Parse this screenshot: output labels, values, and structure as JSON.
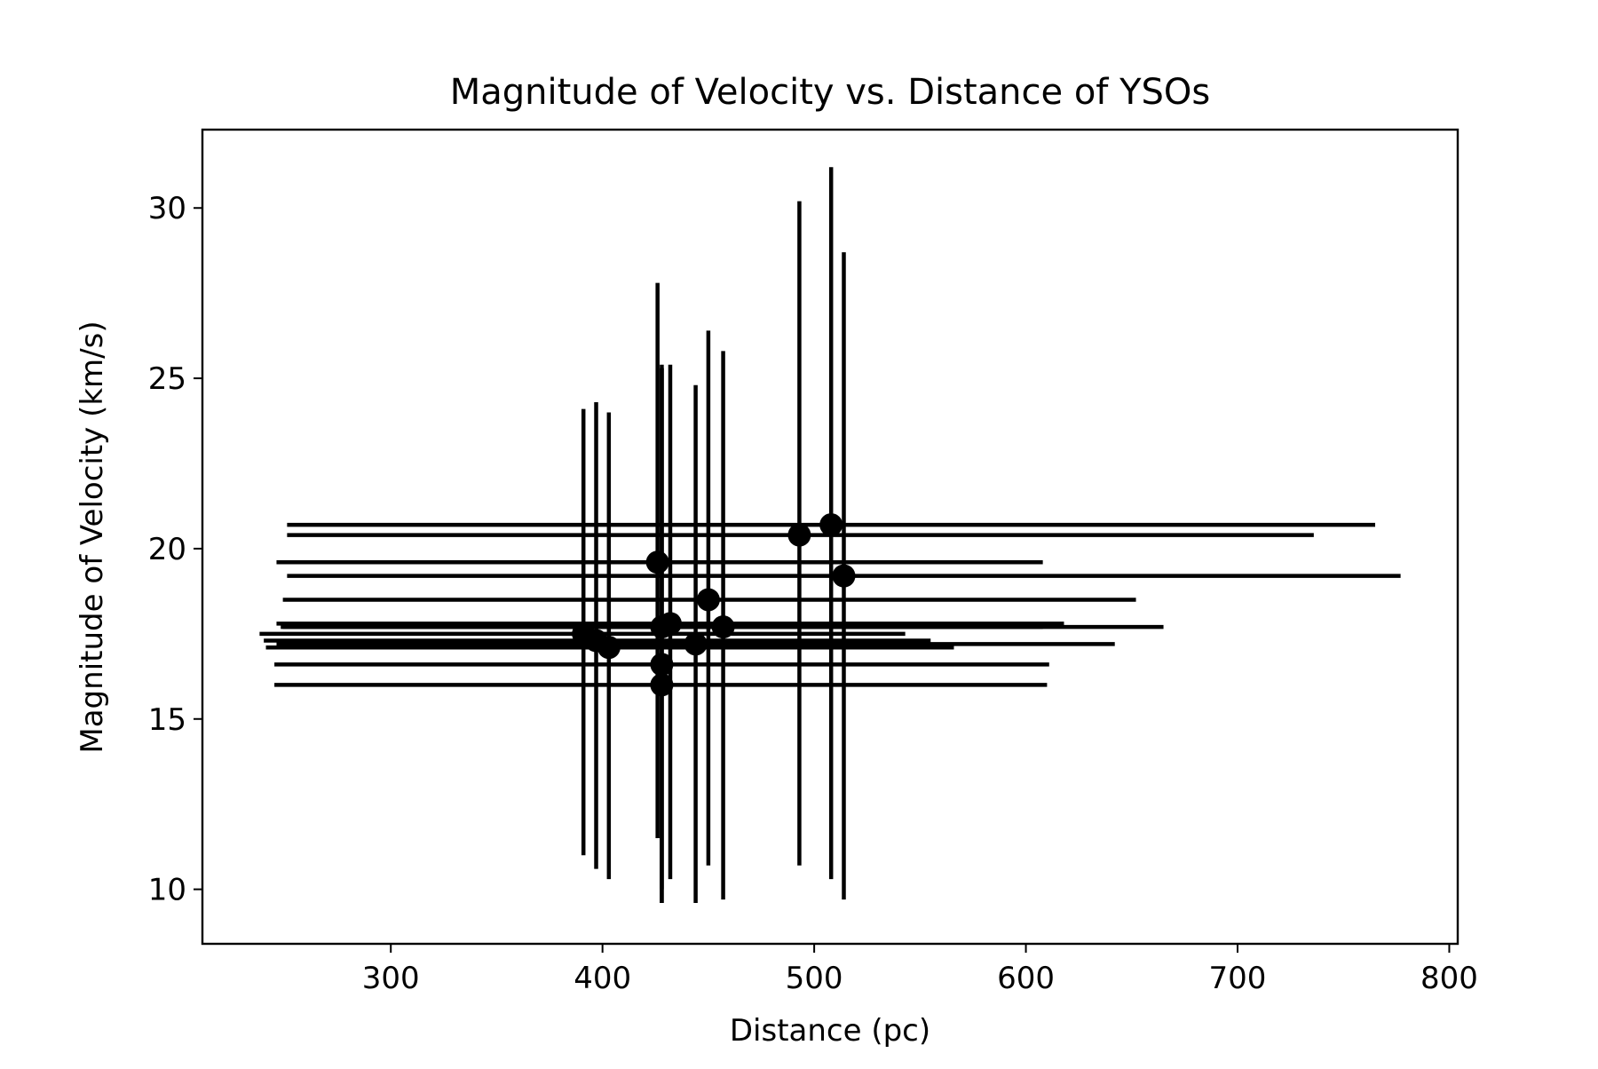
{
  "chart_data": {
    "type": "scatter",
    "title": "Magnitude of Velocity vs. Distance of YSOs",
    "xlabel": "Distance (pc)",
    "ylabel": "Magnitude of Velocity (km/s)",
    "xlim": [
      211,
      804
    ],
    "ylim": [
      8.4,
      32.3
    ],
    "xticks": [
      300,
      400,
      500,
      600,
      700,
      800
    ],
    "yticks": [
      10,
      15,
      20,
      25,
      30
    ],
    "xtick_labels": [
      "300",
      "400",
      "500",
      "600",
      "700",
      "800"
    ],
    "ytick_labels": [
      "10",
      "15",
      "20",
      "25",
      "30"
    ],
    "grid": false,
    "legend": "none",
    "colors": {
      "marker": "#000000",
      "errorbar": "#000000",
      "axes": "#000000"
    },
    "points": [
      {
        "x": 508,
        "y": 20.7,
        "x_lo": 251,
        "x_hi": 765,
        "y_lo": 10.3,
        "y_hi": 31.2
      },
      {
        "x": 493,
        "y": 20.4,
        "x_lo": 251,
        "x_hi": 736,
        "y_lo": 10.7,
        "y_hi": 30.2
      },
      {
        "x": 426,
        "y": 19.6,
        "x_lo": 246,
        "x_hi": 608,
        "y_lo": 11.5,
        "y_hi": 27.8
      },
      {
        "x": 514,
        "y": 19.2,
        "x_lo": 251,
        "x_hi": 777,
        "y_lo": 9.7,
        "y_hi": 28.7
      },
      {
        "x": 450,
        "y": 18.5,
        "x_lo": 249,
        "x_hi": 652,
        "y_lo": 10.7,
        "y_hi": 26.4
      },
      {
        "x": 432,
        "y": 17.8,
        "x_lo": 246,
        "x_hi": 618,
        "y_lo": 10.3,
        "y_hi": 25.4
      },
      {
        "x": 457,
        "y": 17.7,
        "x_lo": 249,
        "x_hi": 665,
        "y_lo": 9.7,
        "y_hi": 25.8
      },
      {
        "x": 428,
        "y": 17.7,
        "x_lo": 248,
        "x_hi": 608,
        "y_lo": 10.0,
        "y_hi": 25.4
      },
      {
        "x": 391,
        "y": 17.5,
        "x_lo": 238,
        "x_hi": 543,
        "y_lo": 11.0,
        "y_hi": 24.1
      },
      {
        "x": 397,
        "y": 17.3,
        "x_lo": 240,
        "x_hi": 555,
        "y_lo": 10.6,
        "y_hi": 24.3
      },
      {
        "x": 444,
        "y": 17.2,
        "x_lo": 246,
        "x_hi": 642,
        "y_lo": 9.6,
        "y_hi": 24.8
      },
      {
        "x": 403,
        "y": 17.1,
        "x_lo": 241,
        "x_hi": 566,
        "y_lo": 10.3,
        "y_hi": 24.0
      },
      {
        "x": 428,
        "y": 16.6,
        "x_lo": 245,
        "x_hi": 611,
        "y_lo": 9.6,
        "y_hi": 25.3
      },
      {
        "x": 428,
        "y": 16.0,
        "x_lo": 245,
        "x_hi": 610,
        "y_lo": 9.6,
        "y_hi": 25.3
      }
    ]
  }
}
